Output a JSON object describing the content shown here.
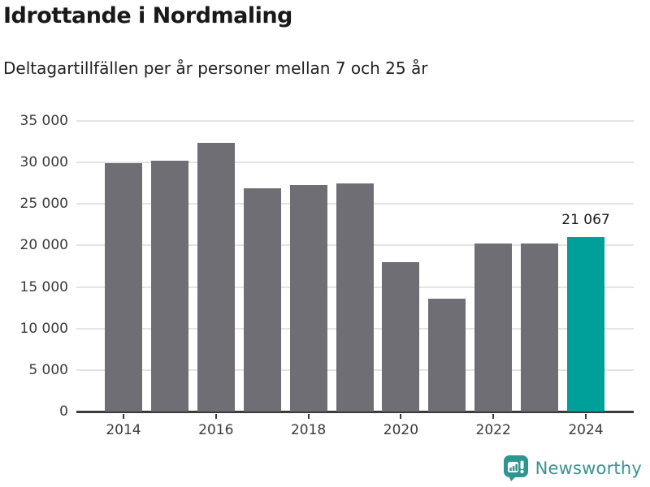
{
  "chart_data": {
    "type": "bar",
    "title": "Idrottande i Nordmaling",
    "subtitle": "Deltagartillfällen per år personer mellan 7 och 25 år",
    "categories": [
      "2014",
      "2015",
      "2016",
      "2017",
      "2018",
      "2019",
      "2020",
      "2021",
      "2022",
      "2023",
      "2024"
    ],
    "values": [
      29900,
      30200,
      32400,
      26900,
      27300,
      27500,
      17950,
      13600,
      20200,
      20200,
      21067
    ],
    "highlight_index": 10,
    "highlight_label": "21 067",
    "bar_color": "#6e6e74",
    "highlight_color": "#00a09a",
    "grid": true,
    "legend": "none",
    "xlabel": "",
    "ylabel": "",
    "ylim": [
      0,
      35000
    ],
    "ytick_step": 5000,
    "ytick_labels": [
      "0",
      "5 000",
      "10 000",
      "15 000",
      "20 000",
      "25 000",
      "30 000",
      "35 000"
    ],
    "xtick_labels": [
      "2014",
      "2016",
      "2018",
      "2020",
      "2022",
      "2024"
    ]
  },
  "footer": {
    "brand": "Newsworthy",
    "brand_color": "#38948f",
    "logo_color": "#2e968f",
    "logo_icon": "newsworthy-chart-bubble-icon"
  }
}
